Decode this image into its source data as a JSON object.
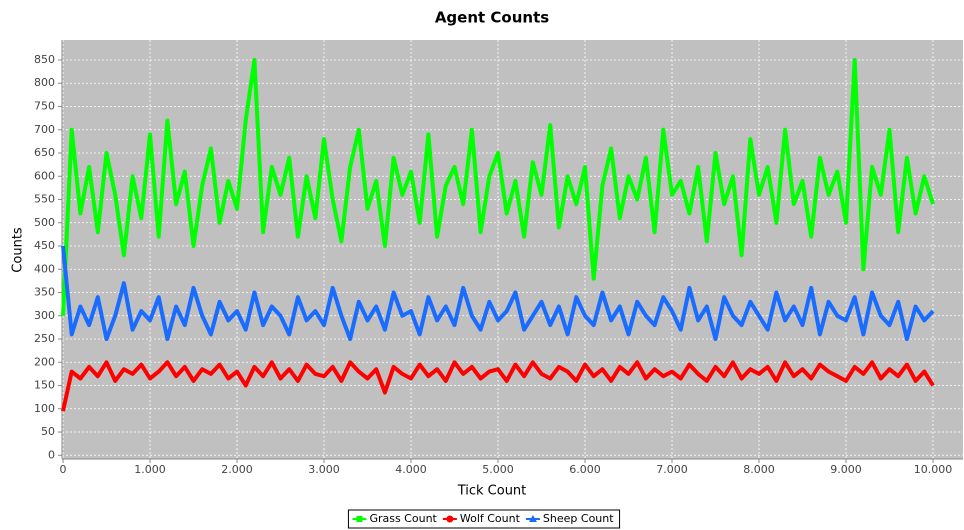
{
  "chart_data": {
    "type": "line",
    "title": "Agent Counts",
    "x_label": "Tick Count",
    "y_label": "Counts",
    "x": [
      0,
      100,
      200,
      300,
      400,
      500,
      600,
      700,
      800,
      900,
      1000,
      1100,
      1200,
      1300,
      1400,
      1500,
      1600,
      1700,
      1800,
      1900,
      2000,
      2100,
      2200,
      2300,
      2400,
      2500,
      2600,
      2700,
      2800,
      2900,
      3000,
      3100,
      3200,
      3300,
      3400,
      3500,
      3600,
      3700,
      3800,
      3900,
      4000,
      4100,
      4200,
      4300,
      4400,
      4500,
      4600,
      4700,
      4800,
      4900,
      5000,
      5100,
      5200,
      5300,
      5400,
      5500,
      5600,
      5700,
      5800,
      5900,
      6000,
      6100,
      6200,
      6300,
      6400,
      6500,
      6600,
      6700,
      6800,
      6900,
      7000,
      7100,
      7200,
      7300,
      7400,
      7500,
      7600,
      7700,
      7800,
      7900,
      8000,
      8100,
      8200,
      8300,
      8400,
      8500,
      8600,
      8700,
      8800,
      8900,
      9000,
      9100,
      9200,
      9300,
      9400,
      9500,
      9600,
      9700,
      9800,
      9900,
      10000
    ],
    "series": [
      {
        "name": "Grass Count",
        "color": "#00ff00",
        "values": [
          300,
          700,
          520,
          620,
          480,
          650,
          560,
          430,
          600,
          510,
          690,
          470,
          720,
          540,
          610,
          450,
          580,
          660,
          500,
          590,
          530,
          720,
          850,
          480,
          620,
          560,
          640,
          470,
          600,
          510,
          680,
          550,
          460,
          620,
          700,
          530,
          590,
          450,
          640,
          560,
          610,
          500,
          690,
          470,
          580,
          620,
          540,
          700,
          480,
          600,
          650,
          520,
          590,
          470,
          630,
          560,
          710,
          490,
          600,
          540,
          620,
          380,
          580,
          660,
          510,
          600,
          550,
          640,
          480,
          700,
          560,
          590,
          520,
          620,
          460,
          650,
          540,
          600,
          430,
          680,
          560,
          620,
          500,
          700,
          540,
          590,
          470,
          640,
          560,
          610,
          500,
          850,
          400,
          620,
          560,
          700,
          480,
          640,
          520,
          600,
          540
        ]
      },
      {
        "name": "Wolf Count",
        "color": "#ff0000",
        "values": [
          95,
          180,
          165,
          190,
          170,
          200,
          160,
          185,
          175,
          195,
          165,
          180,
          200,
          170,
          190,
          160,
          185,
          175,
          195,
          165,
          180,
          150,
          190,
          170,
          200,
          165,
          185,
          160,
          195,
          175,
          170,
          190,
          160,
          200,
          180,
          165,
          185,
          135,
          190,
          175,
          165,
          195,
          170,
          185,
          160,
          200,
          175,
          190,
          165,
          180,
          185,
          160,
          195,
          170,
          200,
          175,
          165,
          190,
          180,
          160,
          195,
          170,
          185,
          160,
          190,
          175,
          200,
          165,
          185,
          170,
          180,
          165,
          195,
          175,
          160,
          190,
          170,
          200,
          165,
          185,
          175,
          190,
          160,
          200,
          170,
          185,
          165,
          195,
          180,
          170,
          160,
          190,
          175,
          200,
          165,
          185,
          170,
          195,
          160,
          180,
          150
        ]
      },
      {
        "name": "Sheep Count",
        "color": "#1a6cff",
        "values": [
          450,
          260,
          320,
          280,
          340,
          250,
          300,
          370,
          270,
          310,
          290,
          340,
          250,
          320,
          280,
          360,
          300,
          260,
          330,
          290,
          310,
          270,
          350,
          280,
          320,
          300,
          260,
          340,
          290,
          310,
          280,
          360,
          300,
          250,
          330,
          290,
          320,
          270,
          350,
          300,
          310,
          260,
          340,
          290,
          320,
          280,
          360,
          300,
          270,
          330,
          290,
          310,
          350,
          270,
          300,
          330,
          280,
          320,
          260,
          340,
          300,
          280,
          350,
          290,
          320,
          260,
          330,
          300,
          280,
          340,
          310,
          270,
          360,
          290,
          320,
          250,
          340,
          300,
          280,
          330,
          300,
          270,
          350,
          290,
          320,
          280,
          360,
          260,
          330,
          300,
          290,
          340,
          260,
          350,
          300,
          280,
          330,
          250,
          320,
          290,
          310
        ]
      }
    ],
    "xlim": [
      -12,
      10345
    ],
    "ylim": [
      -8,
      893
    ],
    "xticks": [
      0,
      {
        "value": 1000,
        "label": "1.000"
      },
      {
        "value": 2000,
        "label": "2.000"
      },
      {
        "value": 3000,
        "label": "3.000"
      },
      {
        "value": 4000,
        "label": "4.000"
      },
      {
        "value": 5000,
        "label": "5.000"
      },
      {
        "value": 6000,
        "label": "6.000"
      },
      {
        "value": 7000,
        "label": "7.000"
      },
      {
        "value": 8000,
        "label": "8.000"
      },
      {
        "value": 9000,
        "label": "9.000"
      },
      {
        "value": 10000,
        "label": "10.000"
      }
    ],
    "yticks": [
      0,
      50,
      100,
      150,
      200,
      250,
      300,
      350,
      400,
      450,
      500,
      550,
      600,
      650,
      700,
      750,
      800,
      850
    ],
    "grid": true
  }
}
